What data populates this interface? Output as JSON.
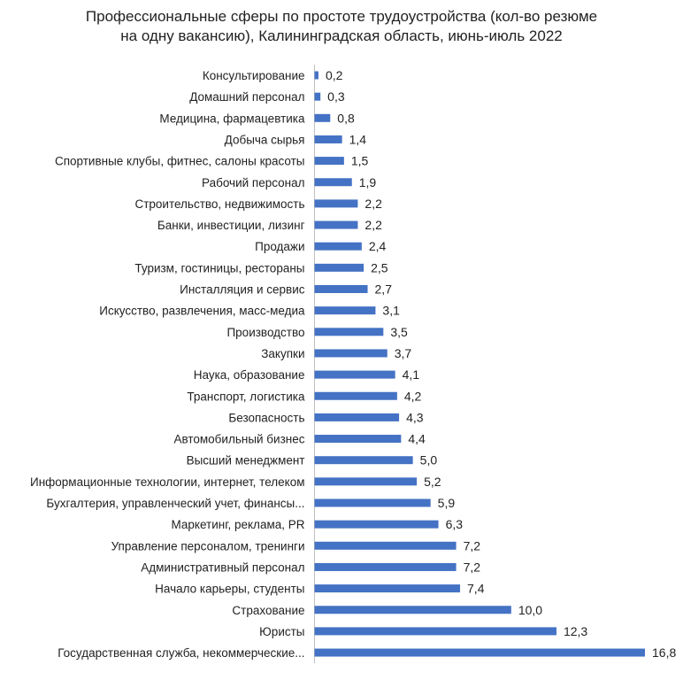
{
  "chart_data": {
    "type": "bar",
    "orientation": "horizontal",
    "title_lines": [
      "Профессиональные сферы по простоте трудоустройства (кол-во резюме",
      "на одну вакансию), Калининградская область, июнь-июль 2022"
    ],
    "categories": [
      "Консультирование",
      "Домашний персонал",
      "Медицина, фармацевтика",
      "Добыча сырья",
      "Спортивные клубы, фитнес, салоны красоты",
      "Рабочий персонал",
      "Строительство, недвижимость",
      "Банки, инвестиции, лизинг",
      "Продажи",
      "Туризм, гостиницы, рестораны",
      "Инсталляция и сервис",
      "Искусство, развлечения, масс-медиа",
      "Производство",
      "Закупки",
      "Наука, образование",
      "Транспорт, логистика",
      "Безопасность",
      "Автомобильный бизнес",
      "Высший менеджмент",
      "Информационные технологии, интернет, телеком",
      "Бухгалтерия, управленческий учет, финансы...",
      "Маркетинг, реклама, PR",
      "Управление персоналом, тренинги",
      "Административный персонал",
      "Начало карьеры, студенты",
      "Страхование",
      "Юристы",
      "Государственная служба, некоммерческие..."
    ],
    "values": [
      0.2,
      0.3,
      0.8,
      1.4,
      1.5,
      1.9,
      2.2,
      2.2,
      2.4,
      2.5,
      2.7,
      3.1,
      3.5,
      3.7,
      4.1,
      4.2,
      4.3,
      4.4,
      5.0,
      5.2,
      5.9,
      6.3,
      7.2,
      7.2,
      7.4,
      10.0,
      12.3,
      16.8
    ],
    "value_labels": [
      "0,2",
      "0,3",
      "0,8",
      "1,4",
      "1,5",
      "1,9",
      "2,2",
      "2,2",
      "2,4",
      "2,5",
      "2,7",
      "3,1",
      "3,5",
      "3,7",
      "4,1",
      "4,2",
      "4,3",
      "4,4",
      "5,0",
      "5,2",
      "5,9",
      "6,3",
      "7,2",
      "7,2",
      "7,4",
      "10,0",
      "12,3",
      "16,8"
    ],
    "bar_color": "#4472C4",
    "axis_color": "#bfbfbf",
    "xlim": [
      0,
      16.8
    ],
    "grid": false,
    "legend": "none"
  }
}
